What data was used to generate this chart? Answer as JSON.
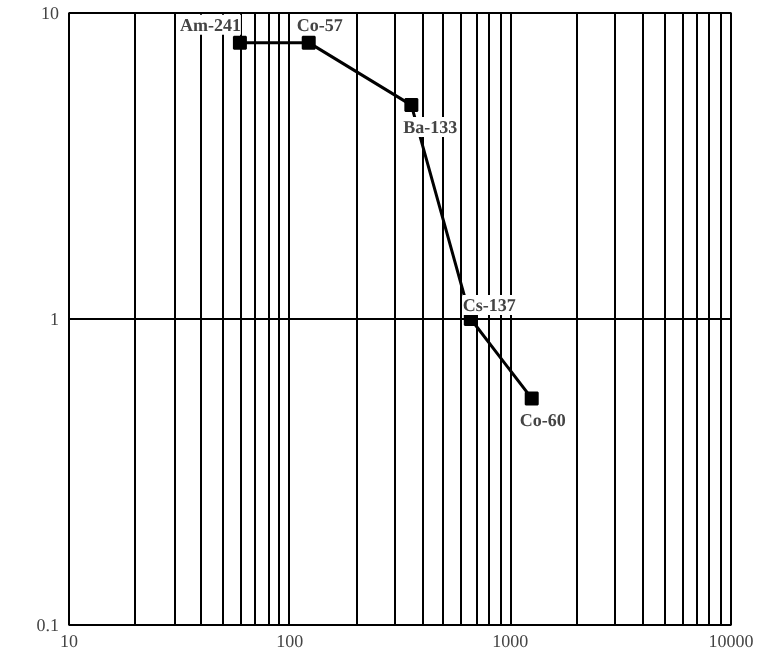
{
  "chart_data": {
    "type": "line",
    "x": [
      59.5,
      122,
      356,
      662,
      1250
    ],
    "series": [
      {
        "color": "#000000",
        "values": [
          8,
          8,
          5,
          1,
          0.55
        ]
      }
    ],
    "marker": "square",
    "line_style": "solid",
    "log": "xy",
    "grid": true,
    "xlim": [
      10,
      10000
    ],
    "ylim": [
      0.1,
      10
    ],
    "xticks": [
      10,
      {
        "value": 20,
        "label": null
      },
      {
        "value": 30,
        "label": null
      },
      {
        "value": 40,
        "label": null
      },
      {
        "value": 50,
        "label": null
      },
      {
        "value": 60,
        "label": null
      },
      {
        "value": 70,
        "label": null
      },
      {
        "value": 80,
        "label": null
      },
      {
        "value": 90,
        "label": null
      },
      100,
      {
        "value": 200,
        "label": null
      },
      {
        "value": 300,
        "label": null
      },
      {
        "value": 400,
        "label": null
      },
      {
        "value": 500,
        "label": null
      },
      {
        "value": 600,
        "label": null
      },
      {
        "value": 700,
        "label": null
      },
      {
        "value": 800,
        "label": null
      },
      {
        "value": 900,
        "label": null
      },
      1000,
      {
        "value": 2000,
        "label": null
      },
      {
        "value": 3000,
        "label": null
      },
      {
        "value": 4000,
        "label": null
      },
      {
        "value": 5000,
        "label": null
      },
      {
        "value": 6000,
        "label": null
      },
      {
        "value": 7000,
        "label": null
      },
      {
        "value": 8000,
        "label": null
      },
      {
        "value": 9000,
        "label": null
      },
      10000
    ],
    "yticks": [
      0.1,
      1,
      10
    ],
    "annotations": [
      {
        "text": "Am-241",
        "x": 59.5,
        "y": 8
      },
      {
        "text": "Co-57",
        "x": 122,
        "y": 8
      },
      {
        "text": "Ba-133",
        "x": 356,
        "y": 5
      },
      {
        "text": "Cs-137",
        "x": 662,
        "y": 1
      },
      {
        "text": "Co-60",
        "x": 1250,
        "y": 0.55
      }
    ]
  }
}
